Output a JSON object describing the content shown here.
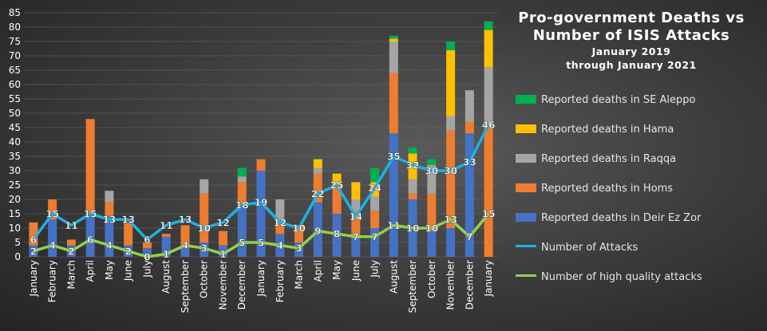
{
  "title": {
    "line1": "Pro-government Deaths vs",
    "line2": "Number of ISIS Attacks",
    "line3": "January 2019",
    "line4": "through January 2021"
  },
  "colors": {
    "deir": "#4472c4",
    "homs": "#ed7d31",
    "raqqa": "#a5a5a5",
    "hama": "#ffc000",
    "aleppo": "#00b050",
    "attacks": "#19b3e6",
    "hq": "#92d050",
    "axis_text": "#ffffff",
    "label_text": "#ffffff"
  },
  "chart_data": {
    "type": "bar",
    "stacked": true,
    "categories": [
      "January",
      "February",
      "March",
      "April",
      "May",
      "June",
      "July",
      "August",
      "September",
      "October",
      "November",
      "December",
      "January",
      "February",
      "March",
      "April",
      "May",
      "June",
      "July",
      "August",
      "September",
      "October",
      "November",
      "December",
      "January"
    ],
    "ylim": [
      0,
      85
    ],
    "yticks": [
      0,
      5,
      10,
      15,
      20,
      25,
      30,
      35,
      40,
      45,
      50,
      55,
      60,
      65,
      70,
      75,
      80,
      85
    ],
    "legend_position": "right",
    "series": [
      {
        "name": "Reported deaths in SE Aleppo",
        "key": "aleppo",
        "values": [
          0,
          0,
          0,
          0,
          0,
          0,
          0,
          0,
          0,
          0,
          0,
          3,
          0,
          0,
          0,
          0,
          0,
          0,
          5,
          1,
          2,
          2,
          3,
          0,
          3
        ]
      },
      {
        "name": "Reported deaths in Hama",
        "key": "hama",
        "values": [
          0,
          0,
          0,
          0,
          0,
          0,
          0,
          0,
          0,
          0,
          0,
          0,
          0,
          0,
          0,
          3,
          4,
          6,
          5,
          1,
          9,
          0,
          23,
          0,
          13
        ]
      },
      {
        "name": "Reported deaths in Raqqa",
        "key": "raqqa",
        "values": [
          0,
          0,
          0,
          0,
          4,
          0,
          0,
          0,
          0,
          5,
          0,
          2,
          0,
          8,
          0,
          2,
          0,
          4,
          5,
          11,
          5,
          10,
          5,
          11,
          21
        ]
      },
      {
        "name": "Reported deaths in Homs",
        "key": "homs",
        "values": [
          8,
          7,
          2,
          33,
          5,
          8,
          2,
          1,
          7,
          17,
          5,
          8,
          4,
          4,
          6,
          10,
          10,
          9,
          6,
          21,
          2,
          13,
          34,
          4,
          45
        ]
      },
      {
        "name": "Reported deaths in Deir Ez Zor",
        "key": "deir",
        "values": [
          4,
          13,
          4,
          15,
          14,
          4,
          3,
          7,
          4,
          5,
          4,
          18,
          30,
          8,
          5,
          19,
          15,
          7,
          10,
          43,
          20,
          9,
          10,
          43,
          0
        ]
      }
    ],
    "lines": [
      {
        "name": "Number of Attacks",
        "key": "attacks",
        "values": [
          6,
          15,
          11,
          15,
          13,
          13,
          6,
          11,
          13,
          10,
          12,
          18,
          19,
          12,
          10,
          22,
          25,
          14,
          24,
          35,
          32,
          30,
          30,
          33,
          46
        ]
      },
      {
        "name": "Number of high quality attacks",
        "key": "hq",
        "values": [
          2,
          4,
          2,
          6,
          4,
          2,
          0,
          1,
          4,
          3,
          1,
          5,
          5,
          4,
          3,
          9,
          8,
          7,
          7,
          11,
          10,
          10,
          13,
          7,
          15
        ]
      }
    ]
  }
}
